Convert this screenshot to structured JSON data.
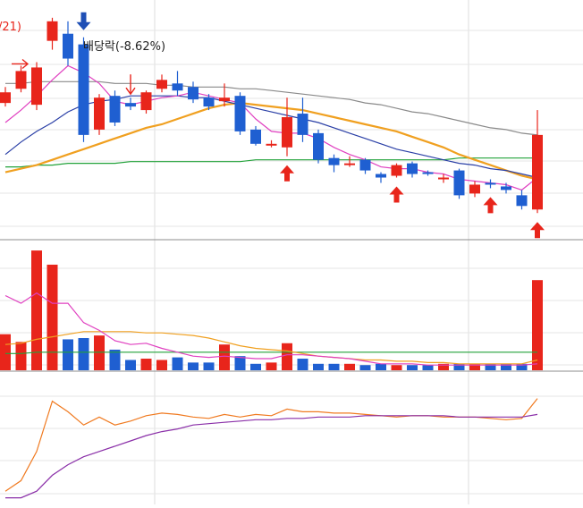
{
  "chart_data": [
    {
      "type": "candlestick",
      "panel": "price",
      "colors": {
        "up": "#e8251b",
        "down": "#1f5fd1",
        "ma5": "#e040c0",
        "ma20": "#2a3fa6",
        "ma60": "#f0a020",
        "ma120": "#22a23a",
        "ma240": "#8a8a8a"
      },
      "annotations": {
        "partial_label": "/21)",
        "dividend_label": "배당락(-8.62%)"
      },
      "candles": [
        {
          "o": 97,
          "c": 103,
          "h": 106,
          "l": 95
        },
        {
          "o": 105,
          "c": 115,
          "h": 118,
          "l": 103
        },
        {
          "o": 96,
          "c": 117,
          "h": 120,
          "l": 93
        },
        {
          "o": 132,
          "c": 143,
          "h": 145,
          "l": 127
        },
        {
          "o": 136,
          "c": 122,
          "h": 143,
          "l": 118
        },
        {
          "o": 130,
          "c": 79,
          "h": 134,
          "l": 75
        },
        {
          "o": 82,
          "c": 100,
          "h": 102,
          "l": 79
        },
        {
          "o": 101,
          "c": 86,
          "h": 104,
          "l": 84
        },
        {
          "o": 97,
          "c": 95,
          "h": 100,
          "l": 93
        },
        {
          "o": 93,
          "c": 103,
          "h": 104,
          "l": 91
        },
        {
          "o": 105,
          "c": 110,
          "h": 113,
          "l": 103
        },
        {
          "o": 108,
          "c": 104,
          "h": 115,
          "l": 101
        },
        {
          "o": 106,
          "c": 99,
          "h": 109,
          "l": 97
        },
        {
          "o": 100,
          "c": 95,
          "h": 102,
          "l": 93
        },
        {
          "o": 98,
          "c": 100,
          "h": 108,
          "l": 95
        },
        {
          "o": 101,
          "c": 81,
          "h": 103,
          "l": 79
        },
        {
          "o": 82,
          "c": 74,
          "h": 84,
          "l": 73
        },
        {
          "o": 73,
          "c": 74,
          "h": 76,
          "l": 72
        },
        {
          "o": 72,
          "c": 89,
          "h": 100,
          "l": 67
        },
        {
          "o": 91,
          "c": 79,
          "h": 100,
          "l": 75
        },
        {
          "o": 80,
          "c": 65,
          "h": 82,
          "l": 63
        },
        {
          "o": 66,
          "c": 62,
          "h": 68,
          "l": 58
        },
        {
          "o": 63,
          "c": 63,
          "h": 67,
          "l": 61
        },
        {
          "o": 65,
          "c": 59,
          "h": 66,
          "l": 57
        },
        {
          "o": 57,
          "c": 55,
          "h": 58,
          "l": 52
        },
        {
          "o": 56,
          "c": 62,
          "h": 63,
          "l": 55
        },
        {
          "o": 63,
          "c": 57,
          "h": 64,
          "l": 55
        },
        {
          "o": 58,
          "c": 57,
          "h": 59,
          "l": 56
        },
        {
          "o": 54,
          "c": 55,
          "h": 57,
          "l": 52
        },
        {
          "o": 59,
          "c": 45,
          "h": 60,
          "l": 43
        },
        {
          "o": 46,
          "c": 51,
          "h": 53,
          "l": 44
        },
        {
          "o": 52,
          "c": 51,
          "h": 54,
          "l": 49
        },
        {
          "o": 50,
          "c": 48,
          "h": 52,
          "l": 46
        },
        {
          "o": 45,
          "c": 39,
          "h": 48,
          "l": 37
        },
        {
          "o": 37,
          "c": 79,
          "h": 93,
          "l": 35
        }
      ],
      "ma5": [
        86,
        93,
        101,
        110,
        118,
        114,
        108,
        98,
        96,
        98,
        100,
        101,
        103,
        101,
        99,
        97,
        88,
        81,
        80,
        80,
        77,
        72,
        68,
        65,
        61,
        60,
        60,
        58,
        57,
        54,
        53,
        52,
        51,
        48,
        55
      ],
      "ma20": [
        68,
        75,
        81,
        86,
        92,
        96,
        98,
        99,
        101,
        101,
        101,
        101,
        100,
        100,
        98,
        96,
        94,
        92,
        90,
        88,
        86,
        83,
        80,
        77,
        74,
        71,
        69,
        67,
        65,
        63,
        62,
        60,
        59,
        57,
        55
      ],
      "ma60": [
        58,
        60,
        62,
        65,
        68,
        71,
        74,
        77,
        80,
        83,
        85,
        88,
        91,
        94,
        96,
        97,
        96,
        95,
        94,
        93,
        91,
        89,
        87,
        85,
        83,
        81,
        78,
        75,
        72,
        68,
        65,
        62,
        59,
        56,
        54
      ],
      "ma120": [
        61,
        61,
        62,
        62,
        63,
        63,
        63,
        63,
        64,
        64,
        64,
        64,
        64,
        64,
        64,
        64,
        65,
        65,
        65,
        65,
        65,
        65,
        65,
        65,
        65,
        65,
        65,
        65,
        65,
        66,
        66,
        66,
        66,
        66,
        66
      ],
      "ma240": [
        108,
        108,
        109,
        109,
        109,
        109,
        109,
        108,
        108,
        108,
        107,
        107,
        106,
        106,
        106,
        105,
        105,
        104,
        103,
        102,
        101,
        100,
        99,
        97,
        96,
        94,
        92,
        91,
        89,
        87,
        85,
        83,
        82,
        80,
        79
      ],
      "ylim": [
        20,
        155
      ],
      "markers": [
        {
          "index": 2,
          "type": "arrow-right",
          "color": "red"
        },
        {
          "index": 5,
          "type": "arrow-down-bold",
          "color": "blue"
        },
        {
          "index": 8,
          "type": "arrow-down",
          "color": "red"
        },
        {
          "index": 18,
          "type": "arrow-up-bold",
          "color": "red"
        },
        {
          "index": 25,
          "type": "arrow-up-bold",
          "color": "red"
        },
        {
          "index": 31,
          "type": "arrow-up-bold",
          "color": "red"
        },
        {
          "index": 34,
          "type": "arrow-up-bold",
          "color": "red"
        }
      ]
    },
    {
      "type": "bar",
      "panel": "volume",
      "values": [
        28,
        22,
        93,
        82,
        24,
        25,
        27,
        16,
        8,
        9,
        8,
        10,
        6,
        6,
        20,
        11,
        5,
        6,
        21,
        9,
        5,
        5,
        5,
        4,
        5,
        4,
        4,
        4,
        5,
        5,
        5,
        5,
        5,
        5,
        70
      ],
      "ma5": [
        58,
        52,
        60,
        52,
        52,
        37,
        31,
        23,
        20,
        21,
        17,
        14,
        11,
        10,
        11,
        10,
        9,
        9,
        12,
        12,
        11,
        10,
        9,
        7,
        5,
        5,
        5,
        4,
        4,
        4,
        4,
        4,
        4,
        4,
        5
      ],
      "ma20": [
        20,
        21,
        24,
        26,
        28,
        30,
        30,
        30,
        30,
        29,
        29,
        28,
        27,
        25,
        22,
        19,
        17,
        16,
        15,
        13,
        11,
        10,
        9,
        8,
        8,
        7,
        7,
        6,
        6,
        5,
        5,
        5,
        5,
        5,
        8
      ],
      "ma60": [
        13,
        13,
        14,
        14,
        14,
        14,
        14,
        14,
        14,
        14,
        14,
        14,
        14,
        14,
        14,
        14,
        14,
        14,
        14,
        14,
        14,
        14,
        14,
        14,
        14,
        14,
        14,
        14,
        14,
        14,
        14,
        14,
        14,
        14,
        14
      ],
      "ylim": [
        0,
        100
      ]
    },
    {
      "type": "line",
      "panel": "indicator",
      "series": [
        {
          "values": [
            10,
            18,
            40,
            78,
            70,
            60,
            66,
            60,
            63,
            67,
            69,
            68,
            66,
            65,
            68,
            66,
            68,
            67,
            72,
            70,
            70,
            69,
            69,
            68,
            67,
            66,
            67,
            67,
            66,
            66,
            66,
            65,
            64,
            65,
            80
          ]
        },
        {
          "values": [
            5,
            5,
            10,
            22,
            30,
            36,
            40,
            44,
            48,
            52,
            55,
            57,
            60,
            61,
            62,
            63,
            64,
            64,
            65,
            65,
            66,
            66,
            66,
            67,
            67,
            67,
            67,
            67,
            67,
            66,
            66,
            66,
            66,
            66,
            68
          ]
        }
      ],
      "ylim": [
        0,
        100
      ]
    }
  ]
}
